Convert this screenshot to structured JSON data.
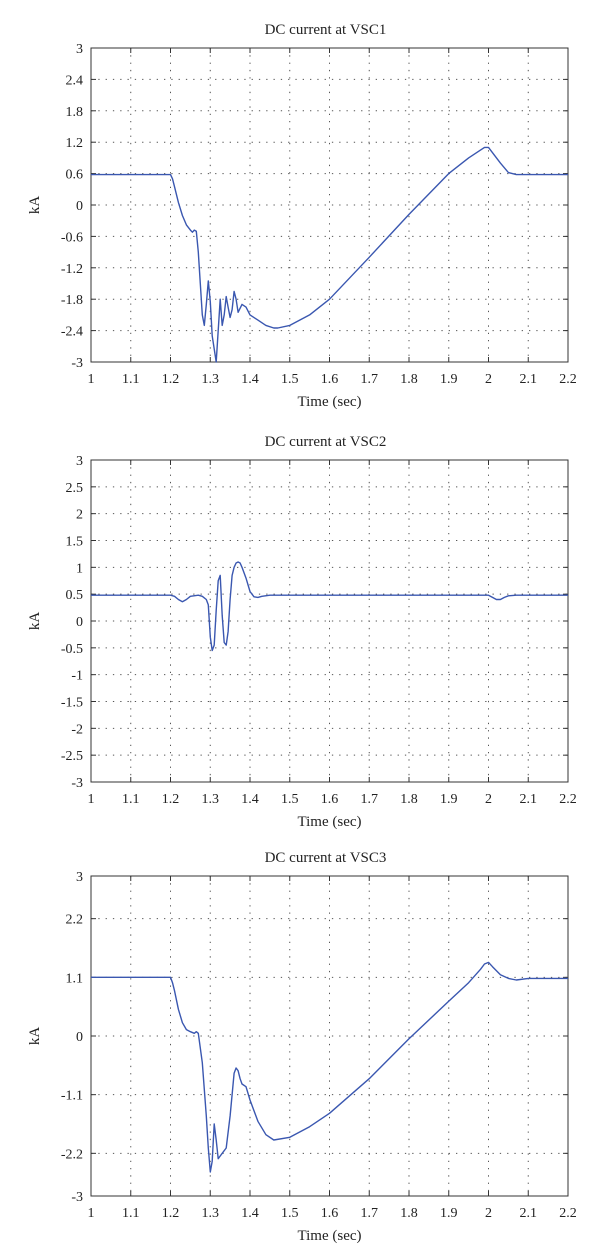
{
  "chart_data": [
    {
      "type": "line",
      "title": "DC current at VSC1",
      "xlabel": "Time (sec)",
      "ylabel": "kA",
      "xlim": [
        1,
        2.2
      ],
      "ylim": [
        -3,
        3
      ],
      "xticks": [
        "1",
        "1.1",
        "1.2",
        "1.3",
        "1.4",
        "1.5",
        "1.6",
        "1.7",
        "1.8",
        "1.9",
        "2",
        "2.1",
        "2.2"
      ],
      "yticks": [
        "3",
        "2.4",
        "1.8",
        "1.2",
        "0.6",
        "0",
        "-0.6",
        "-1.2",
        "-1.8",
        "-2.4",
        "-3"
      ],
      "grid": true,
      "line_color": "#3a57b0",
      "series": [
        {
          "x": [
            1.0,
            1.2,
            1.205,
            1.21,
            1.22,
            1.23,
            1.24,
            1.25,
            1.255,
            1.26,
            1.265,
            1.27,
            1.275,
            1.28,
            1.285,
            1.29,
            1.295,
            1.3,
            1.305,
            1.31,
            1.315,
            1.32,
            1.325,
            1.33,
            1.335,
            1.34,
            1.345,
            1.35,
            1.355,
            1.36,
            1.365,
            1.37,
            1.38,
            1.39,
            1.4,
            1.42,
            1.44,
            1.46,
            1.47,
            1.5,
            1.55,
            1.6,
            1.7,
            1.8,
            1.9,
            1.95,
            1.98,
            1.99,
            2.0,
            2.01,
            2.03,
            2.05,
            2.07,
            2.1,
            2.2
          ],
          "y": [
            0.58,
            0.58,
            0.5,
            0.35,
            0.05,
            -0.2,
            -0.38,
            -0.48,
            -0.52,
            -0.48,
            -0.5,
            -0.9,
            -1.5,
            -2.1,
            -2.3,
            -1.9,
            -1.45,
            -1.85,
            -2.5,
            -2.75,
            -3.0,
            -2.4,
            -1.8,
            -2.3,
            -2.1,
            -1.75,
            -1.95,
            -2.15,
            -2.0,
            -1.65,
            -1.8,
            -2.05,
            -1.9,
            -1.95,
            -2.1,
            -2.2,
            -2.3,
            -2.35,
            -2.35,
            -2.3,
            -2.1,
            -1.8,
            -1.0,
            -0.18,
            0.6,
            0.9,
            1.05,
            1.1,
            1.1,
            1.0,
            0.8,
            0.62,
            0.58,
            0.58,
            0.58
          ]
        }
      ]
    },
    {
      "type": "line",
      "title": "DC current at VSC2",
      "xlabel": "Time (sec)",
      "ylabel": "kA",
      "xlim": [
        1,
        2.2
      ],
      "ylim": [
        -3,
        3
      ],
      "xticks": [
        "1",
        "1.1",
        "1.2",
        "1.3",
        "1.4",
        "1.5",
        "1.6",
        "1.7",
        "1.8",
        "1.9",
        "2",
        "2.1",
        "2.2"
      ],
      "yticks": [
        "3",
        "2.5",
        "2",
        "1.5",
        "1",
        "0.5",
        "0",
        "-0.5",
        "-1",
        "-1.5",
        "-2",
        "-2.5",
        "-3"
      ],
      "grid": true,
      "line_color": "#3a57b0",
      "series": [
        {
          "x": [
            1.0,
            1.2,
            1.21,
            1.22,
            1.23,
            1.24,
            1.25,
            1.27,
            1.28,
            1.29,
            1.295,
            1.3,
            1.305,
            1.31,
            1.315,
            1.32,
            1.325,
            1.33,
            1.335,
            1.34,
            1.345,
            1.35,
            1.355,
            1.36,
            1.365,
            1.37,
            1.375,
            1.38,
            1.39,
            1.4,
            1.41,
            1.42,
            1.43,
            1.45,
            1.5,
            2.0,
            2.01,
            2.02,
            2.03,
            2.04,
            2.05,
            2.07,
            2.2
          ],
          "y": [
            0.48,
            0.48,
            0.46,
            0.4,
            0.36,
            0.4,
            0.46,
            0.48,
            0.46,
            0.4,
            0.3,
            -0.3,
            -0.55,
            -0.45,
            0.2,
            0.75,
            0.85,
            0.1,
            -0.4,
            -0.45,
            -0.2,
            0.4,
            0.85,
            1.0,
            1.08,
            1.1,
            1.08,
            1.0,
            0.8,
            0.55,
            0.45,
            0.44,
            0.46,
            0.48,
            0.48,
            0.48,
            0.44,
            0.4,
            0.4,
            0.44,
            0.47,
            0.48,
            0.48
          ]
        }
      ]
    },
    {
      "type": "line",
      "title": "DC current at VSC3",
      "xlabel": "Time (sec)",
      "ylabel": "kA",
      "xlim": [
        1,
        2.2
      ],
      "ylim": [
        -3,
        3
      ],
      "xticks": [
        "1",
        "1.1",
        "1.2",
        "1.3",
        "1.4",
        "1.5",
        "1.6",
        "1.7",
        "1.8",
        "1.9",
        "2",
        "2.1",
        "2.2"
      ],
      "yticks": [
        "3",
        "2.2",
        "1.1",
        "0",
        "-1.1",
        "-2.2",
        "-3"
      ],
      "grid": true,
      "line_color": "#3a57b0",
      "series": [
        {
          "x": [
            1.0,
            1.2,
            1.205,
            1.21,
            1.22,
            1.23,
            1.24,
            1.25,
            1.26,
            1.265,
            1.27,
            1.28,
            1.29,
            1.295,
            1.3,
            1.305,
            1.31,
            1.315,
            1.32,
            1.325,
            1.33,
            1.34,
            1.35,
            1.36,
            1.365,
            1.37,
            1.375,
            1.38,
            1.39,
            1.4,
            1.42,
            1.44,
            1.46,
            1.5,
            1.55,
            1.6,
            1.7,
            1.8,
            1.9,
            1.95,
            1.98,
            1.99,
            2.0,
            2.01,
            2.03,
            2.05,
            2.07,
            2.1,
            2.2
          ],
          "y": [
            1.1,
            1.1,
            1.0,
            0.85,
            0.5,
            0.25,
            0.12,
            0.08,
            0.05,
            0.08,
            0.05,
            -0.5,
            -1.5,
            -2.1,
            -2.55,
            -2.35,
            -1.65,
            -1.95,
            -2.3,
            -2.25,
            -2.2,
            -2.1,
            -1.5,
            -0.7,
            -0.6,
            -0.65,
            -0.8,
            -0.9,
            -0.95,
            -1.2,
            -1.6,
            -1.85,
            -1.95,
            -1.9,
            -1.7,
            -1.45,
            -0.8,
            -0.05,
            0.65,
            1.0,
            1.25,
            1.35,
            1.38,
            1.3,
            1.15,
            1.08,
            1.05,
            1.08,
            1.08
          ]
        }
      ]
    }
  ]
}
